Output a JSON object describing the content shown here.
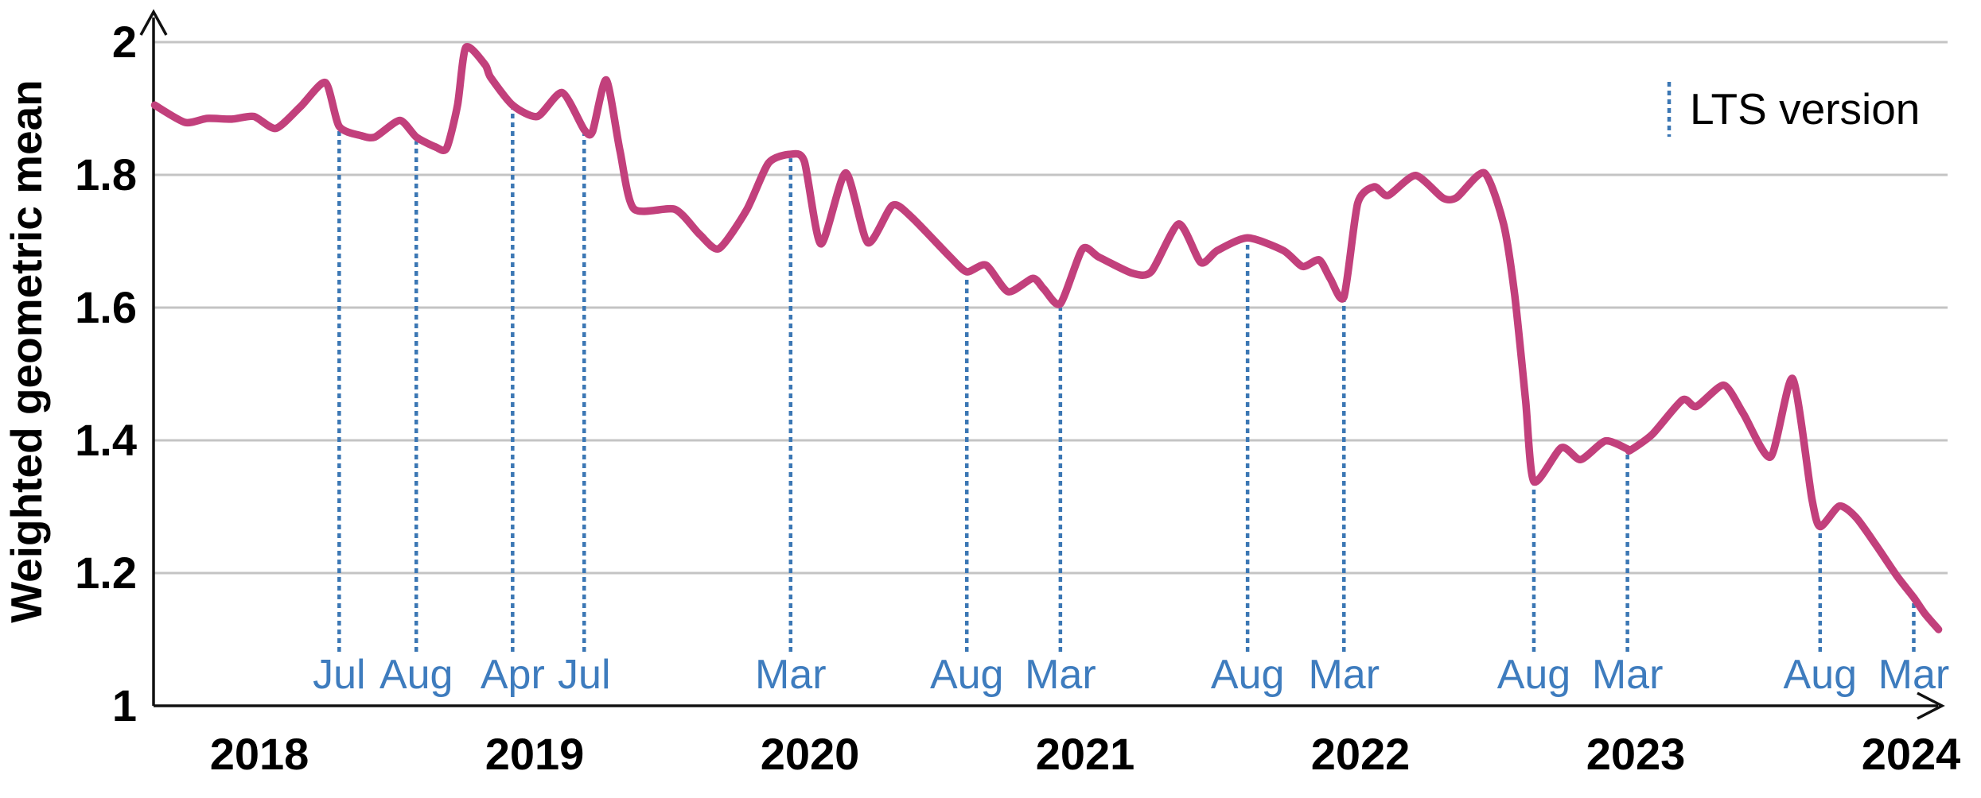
{
  "figure": {
    "background": "#ffffff"
  },
  "colors": {
    "series_line": "#c2407c",
    "lts_line": "#3b77b4",
    "lts_label_text": "#3e7cbe",
    "gridline": "#c4c4c4",
    "axis": "#111111",
    "tick_text": "#000000"
  },
  "legend": {
    "label": "LTS version"
  },
  "axes": {
    "y_title": "Weighted geometric mean",
    "y_ticks": [
      {
        "label": "2",
        "value": 2.0
      },
      {
        "label": "1.8",
        "value": 1.8
      },
      {
        "label": "1.6",
        "value": 1.6
      },
      {
        "label": "1.4",
        "value": 1.4
      },
      {
        "label": "1.2",
        "value": 1.2
      },
      {
        "label": "1",
        "value": 1.0
      }
    ],
    "x_ticks": [
      {
        "label": "2018",
        "t": 2018
      },
      {
        "label": "2019",
        "t": 2019
      },
      {
        "label": "2020",
        "t": 2020
      },
      {
        "label": "2021",
        "t": 2021
      },
      {
        "label": "2022",
        "t": 2022
      },
      {
        "label": "2023",
        "t": 2023
      },
      {
        "label": "2024",
        "t": 2024
      }
    ]
  },
  "chart_data": {
    "type": "line",
    "title": "",
    "xlabel": "",
    "ylabel": "Weighted geometric mean",
    "ylim": [
      1,
      2
    ],
    "xlim": [
      2017.6,
      2024.15
    ],
    "grid": true,
    "legend_position": "top-right",
    "legend": [
      "LTS version"
    ],
    "lts_releases": [
      {
        "label": "Jul",
        "t": 2018.29
      },
      {
        "label": "Aug",
        "t": 2018.57
      },
      {
        "label": "Apr",
        "t": 2018.92
      },
      {
        "label": "Jul",
        "t": 2019.18
      },
      {
        "label": "Mar",
        "t": 2019.93
      },
      {
        "label": "Aug",
        "t": 2020.57
      },
      {
        "label": "Mar",
        "t": 2020.91
      },
      {
        "label": "Aug",
        "t": 2021.59
      },
      {
        "label": "Mar",
        "t": 2021.94
      },
      {
        "label": "Aug",
        "t": 2022.63
      },
      {
        "label": "Mar",
        "t": 2022.97
      },
      {
        "label": "Aug",
        "t": 2023.67
      },
      {
        "label": "Mar",
        "t": 2024.01
      }
    ],
    "series": [
      {
        "name": "weighted geometric mean",
        "points": [
          [
            2017.62,
            1.905
          ],
          [
            2017.73,
            1.879
          ],
          [
            2017.81,
            1.885
          ],
          [
            2017.9,
            1.884
          ],
          [
            2017.98,
            1.888
          ],
          [
            2018.06,
            1.87
          ],
          [
            2018.15,
            1.903
          ],
          [
            2018.24,
            1.939
          ],
          [
            2018.29,
            1.873
          ],
          [
            2018.37,
            1.859
          ],
          [
            2018.42,
            1.857
          ],
          [
            2018.51,
            1.882
          ],
          [
            2018.57,
            1.857
          ],
          [
            2018.64,
            1.842
          ],
          [
            2018.68,
            1.84
          ],
          [
            2018.72,
            1.905
          ],
          [
            2018.75,
            1.992
          ],
          [
            2018.82,
            1.966
          ],
          [
            2018.84,
            1.947
          ],
          [
            2018.92,
            1.905
          ],
          [
            2019.01,
            1.888
          ],
          [
            2019.1,
            1.924
          ],
          [
            2019.18,
            1.868
          ],
          [
            2019.21,
            1.865
          ],
          [
            2019.26,
            1.943
          ],
          [
            2019.31,
            1.836
          ],
          [
            2019.36,
            1.749
          ],
          [
            2019.51,
            1.748
          ],
          [
            2019.6,
            1.71
          ],
          [
            2019.67,
            1.689
          ],
          [
            2019.77,
            1.747
          ],
          [
            2019.85,
            1.818
          ],
          [
            2019.93,
            1.831
          ],
          [
            2019.98,
            1.82
          ],
          [
            2020.04,
            1.696
          ],
          [
            2020.13,
            1.803
          ],
          [
            2020.21,
            1.698
          ],
          [
            2020.3,
            1.754
          ],
          [
            2020.37,
            1.736
          ],
          [
            2020.51,
            1.676
          ],
          [
            2020.57,
            1.654
          ],
          [
            2020.64,
            1.664
          ],
          [
            2020.72,
            1.624
          ],
          [
            2020.81,
            1.644
          ],
          [
            2020.85,
            1.628
          ],
          [
            2020.91,
            1.606
          ],
          [
            2020.99,
            1.688
          ],
          [
            2021.05,
            1.676
          ],
          [
            2021.17,
            1.652
          ],
          [
            2021.24,
            1.654
          ],
          [
            2021.34,
            1.726
          ],
          [
            2021.42,
            1.668
          ],
          [
            2021.48,
            1.686
          ],
          [
            2021.59,
            1.705
          ],
          [
            2021.72,
            1.686
          ],
          [
            2021.79,
            1.662
          ],
          [
            2021.85,
            1.672
          ],
          [
            2021.89,
            1.644
          ],
          [
            2021.94,
            1.616
          ],
          [
            2021.99,
            1.757
          ],
          [
            2022.05,
            1.782
          ],
          [
            2022.1,
            1.769
          ],
          [
            2022.2,
            1.799
          ],
          [
            2022.3,
            1.765
          ],
          [
            2022.35,
            1.766
          ],
          [
            2022.45,
            1.803
          ],
          [
            2022.52,
            1.726
          ],
          [
            2022.56,
            1.62
          ],
          [
            2022.6,
            1.46
          ],
          [
            2022.63,
            1.338
          ],
          [
            2022.73,
            1.389
          ],
          [
            2022.8,
            1.371
          ],
          [
            2022.89,
            1.399
          ],
          [
            2022.97,
            1.387
          ],
          [
            2022.98,
            1.385
          ],
          [
            2023.06,
            1.409
          ],
          [
            2023.17,
            1.461
          ],
          [
            2023.22,
            1.451
          ],
          [
            2023.32,
            1.483
          ],
          [
            2023.39,
            1.441
          ],
          [
            2023.49,
            1.375
          ],
          [
            2023.57,
            1.493
          ],
          [
            2023.64,
            1.312
          ],
          [
            2023.67,
            1.27
          ],
          [
            2023.74,
            1.301
          ],
          [
            2023.8,
            1.284
          ],
          [
            2023.87,
            1.244
          ],
          [
            2023.95,
            1.195
          ],
          [
            2024.01,
            1.163
          ],
          [
            2024.05,
            1.139
          ],
          [
            2024.1,
            1.115
          ]
        ]
      }
    ]
  }
}
